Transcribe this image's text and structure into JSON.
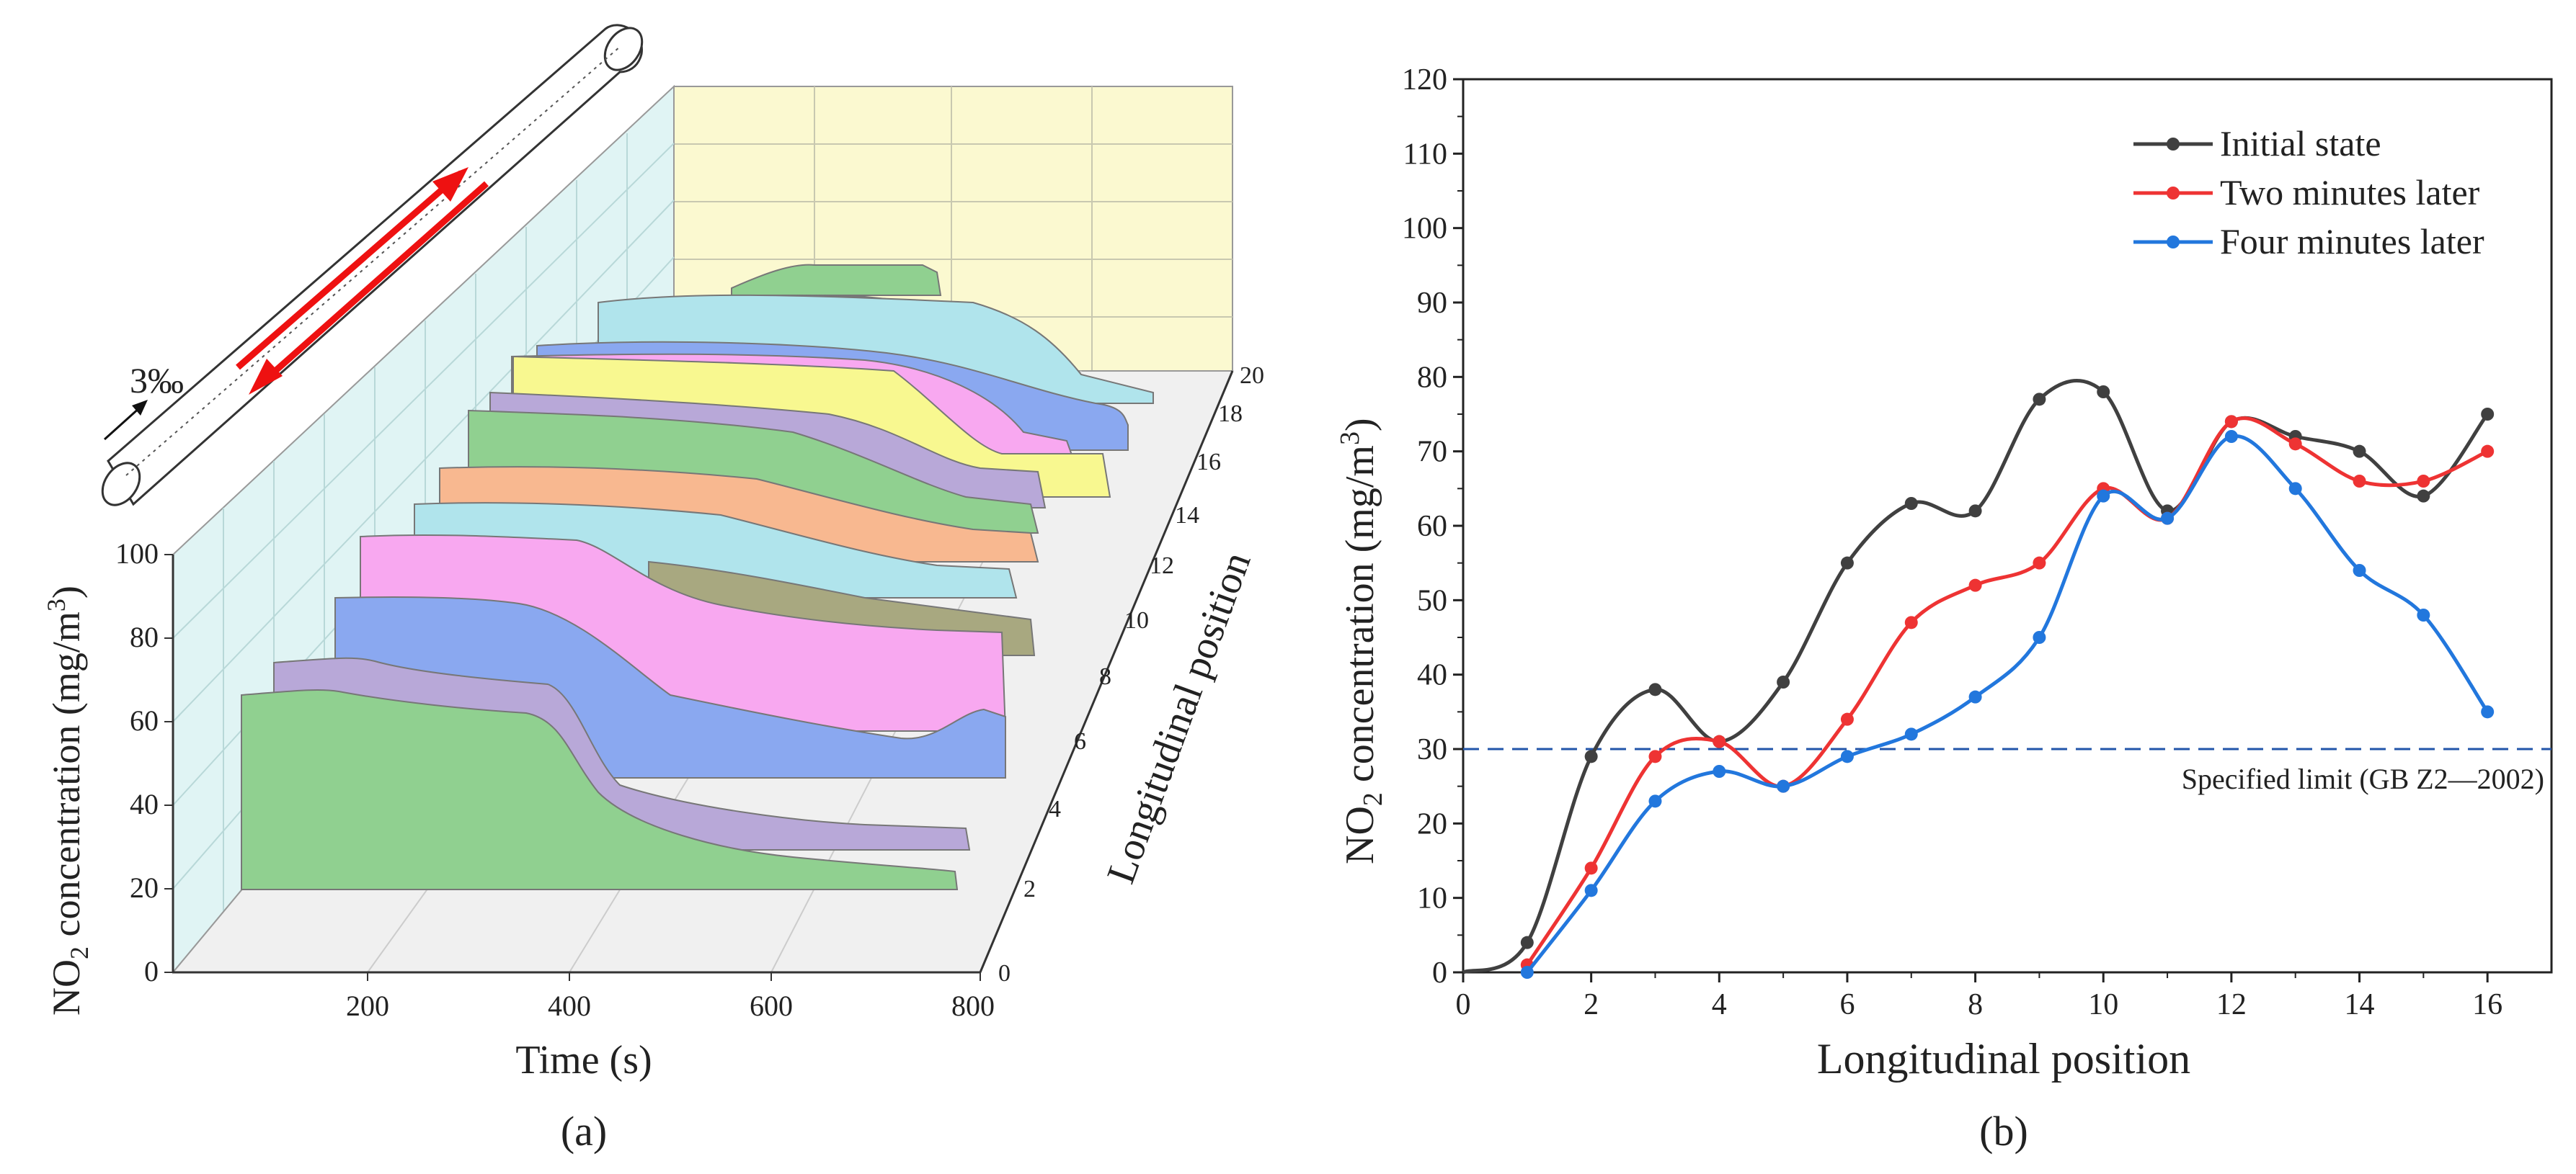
{
  "panels": {
    "a_label": "(a)",
    "b_label": "(b)"
  },
  "panel_a": {
    "ylabel_prefix": "NO",
    "ylabel_sub": "2",
    "ylabel_suffix": " concentration (mg/m",
    "ylabel_sup": "3",
    "ylabel_end": ")",
    "xlabel": "Time (s)",
    "zlabel": "Longitudinal position",
    "slope_label": "3‰",
    "y_ticks": [
      "0",
      "20",
      "40",
      "60",
      "80",
      "100"
    ],
    "x_ticks": [
      "200",
      "400",
      "600",
      "800"
    ],
    "z_ticks": [
      "0",
      "2",
      "4",
      "6",
      "8",
      "10",
      "12",
      "14",
      "16",
      "18",
      "20"
    ],
    "colors": {
      "green": "#90d090",
      "purple": "#b8a8d8",
      "blue": "#8aa8f0",
      "pink": "#f8a8f0",
      "olive": "#a8a880",
      "cyan": "#b0e4ec",
      "orange": "#f8b890",
      "yellow": "#f8f890",
      "back_wall": "#fbf9d0",
      "side_wall": "#e0f4f4",
      "arrow_red": "#ee1111"
    }
  },
  "chart_data": {
    "type": "line",
    "title": "",
    "xlabel": "Longitudinal position",
    "ylabel": "NO2 concentration (mg/m3)",
    "xlim": [
      0,
      17
    ],
    "ylim": [
      0,
      120
    ],
    "x_ticks": [
      0,
      2,
      4,
      6,
      8,
      10,
      12,
      14,
      16
    ],
    "y_ticks": [
      0,
      10,
      20,
      30,
      40,
      50,
      60,
      70,
      80,
      90,
      100,
      110,
      120
    ],
    "x": [
      1,
      2,
      3,
      4,
      5,
      6,
      7,
      8,
      9,
      10,
      11,
      12,
      13,
      14,
      15,
      16
    ],
    "series": [
      {
        "name": "Initial state",
        "color": "#404040",
        "values": [
          4,
          29,
          38,
          31,
          39,
          55,
          63,
          62,
          77,
          78,
          62,
          74,
          72,
          70,
          64,
          75
        ]
      },
      {
        "name": "Two minutes later",
        "color": "#ee3333",
        "values": [
          1,
          14,
          29,
          31,
          25,
          34,
          47,
          52,
          55,
          65,
          61,
          74,
          71,
          66,
          66,
          70
        ]
      },
      {
        "name": "Four minutes later",
        "color": "#2277dd",
        "values": [
          0,
          11,
          23,
          27,
          25,
          29,
          32,
          37,
          45,
          64,
          61,
          72,
          65,
          54,
          48,
          35
        ]
      }
    ],
    "reference_line": {
      "y": 30,
      "label": "Specified limit (GB Z2—2002)",
      "color": "#2255aa"
    },
    "legend_position": "top-right"
  }
}
